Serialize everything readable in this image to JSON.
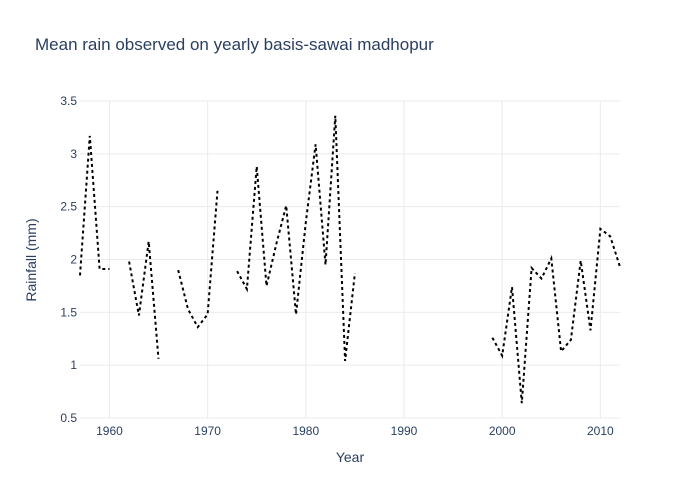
{
  "chart_data": {
    "type": "line",
    "title": "Mean rain observed on yearly basis-sawai madhopur",
    "xlabel": "Year",
    "ylabel": "Rainfall (mm)",
    "xlim": [
      1957,
      2012
    ],
    "ylim": [
      0.5,
      3.5
    ],
    "x_ticks": [
      1960,
      1970,
      1980,
      1990,
      2000,
      2010
    ],
    "y_ticks": [
      0.5,
      1,
      1.5,
      2,
      2.5,
      3,
      3.5
    ],
    "x_tick_labels": [
      "1960",
      "1970",
      "1980",
      "1990",
      "2000",
      "2010"
    ],
    "y_tick_labels": [
      "0.5",
      "1",
      "1.5",
      "2",
      "2.5",
      "3",
      "3.5"
    ],
    "grid": true,
    "legend": "none",
    "line_color": "#000000",
    "line_style": "dotted",
    "series": [
      {
        "x": [
          1957,
          1958,
          1959,
          1960,
          1961,
          1962,
          1963,
          1964,
          1965,
          1966,
          1967,
          1968,
          1969,
          1970,
          1971,
          1972,
          1973,
          1974,
          1975,
          1976,
          1977,
          1978,
          1979,
          1980,
          1981,
          1982,
          1983,
          1984,
          1985,
          1986,
          1987,
          1988,
          1989,
          1990,
          1991,
          1992,
          1993,
          1994,
          1995,
          1996,
          1997,
          1998,
          1999,
          2000,
          2001,
          2002,
          2003,
          2004,
          2005,
          2006,
          2007,
          2008,
          2009,
          2010,
          2011,
          2012
        ],
        "y": [
          1.85,
          3.17,
          1.91,
          1.91,
          null,
          1.98,
          1.47,
          2.17,
          1.06,
          null,
          1.9,
          1.53,
          1.36,
          1.48,
          2.65,
          null,
          1.89,
          1.72,
          2.88,
          1.75,
          2.15,
          2.51,
          1.48,
          2.35,
          3.09,
          1.95,
          3.36,
          1.04,
          1.87,
          null,
          null,
          null,
          null,
          null,
          null,
          null,
          null,
          null,
          null,
          null,
          null,
          null,
          1.26,
          1.09,
          1.74,
          0.64,
          1.92,
          1.82,
          2.01,
          1.13,
          1.24,
          1.99,
          1.33,
          2.29,
          2.22,
          1.93
        ]
      }
    ]
  }
}
